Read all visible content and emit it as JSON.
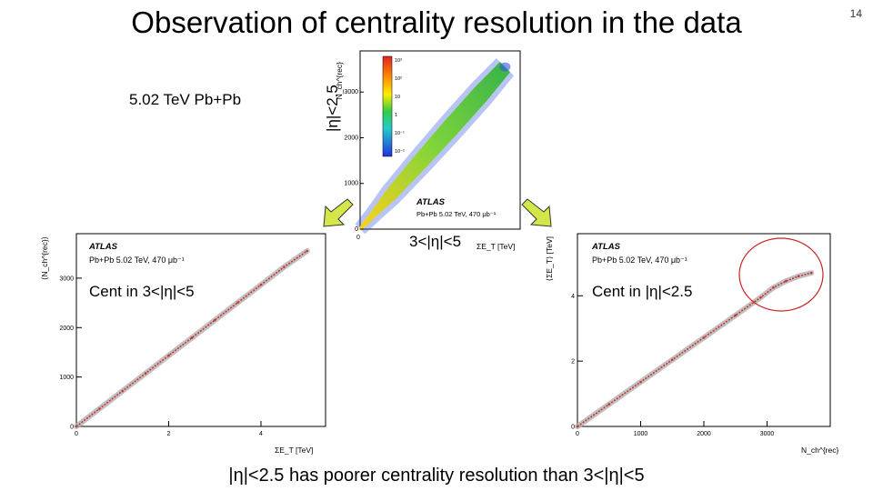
{
  "slide": {
    "title": "Observation of centrality resolution in the data",
    "number": "14",
    "energy_label": "5.02 TeV Pb+Pb",
    "eta_central_label": "|η|<2.5",
    "eta_forward_label": "3<|η|<5",
    "cent_left_label": "Cent in 3<|η|<5",
    "cent_right_label": "Cent in |η|<2.5",
    "conclusion": "|η|<2.5 has poorer centrality resolution than 3<|η|<5"
  },
  "arrow_color": "#d4e64a",
  "circle_color": "#cc2222",
  "chart_data": [
    {
      "id": "top-2d",
      "type": "heatmap",
      "atlas": "ATLAS",
      "info": "Pb+Pb 5.02 TeV, 470 μb⁻¹",
      "ylabel": "N_ch^{rec}",
      "xlabel": "ΣE_T [TeV]",
      "y_ticks": [
        "0",
        "1000",
        "2000",
        "3000"
      ],
      "x_ticks": [
        "0"
      ],
      "ylim": [
        0,
        3900
      ],
      "colorbar_labels": [
        "10³",
        "10²",
        "10",
        "1",
        "10⁻¹",
        "10⁻²"
      ],
      "ridge": [
        [
          0.0,
          0
        ],
        [
          0.5,
          370
        ],
        [
          1.0,
          740
        ],
        [
          2.0,
          1480
        ],
        [
          3.0,
          2220
        ],
        [
          4.0,
          2960
        ],
        [
          4.8,
          3550
        ]
      ],
      "colors": [
        "#ffffff",
        "#3355dd",
        "#22aa44",
        "#ffcc00",
        "#dd2222"
      ]
    },
    {
      "id": "bottom-left",
      "type": "line",
      "atlas": "ATLAS",
      "info": "Pb+Pb 5.02 TeV, 470 μb⁻¹",
      "xlabel": "ΣE_T [TeV]",
      "ylabel": "⟨N_ch^{rec}⟩",
      "xlim": [
        0,
        5.4
      ],
      "ylim": [
        0,
        3900
      ],
      "x_ticks": [
        0,
        2,
        4
      ],
      "y_ticks": [
        0,
        1000,
        2000,
        3000
      ],
      "x": [
        0,
        0.5,
        1,
        1.5,
        2,
        2.5,
        3,
        3.5,
        4,
        4.5,
        5.0
      ],
      "values": [
        0,
        358,
        717,
        1075,
        1434,
        1792,
        2150,
        2509,
        2867,
        3225,
        3550
      ],
      "fit_color": "#cc3333",
      "band_color": "#b0b0b0"
    },
    {
      "id": "bottom-right",
      "type": "line",
      "atlas": "ATLAS",
      "info": "Pb+Pb 5.02 TeV, 470 μb⁻¹",
      "xlabel": "N_ch^{rec}",
      "ylabel": "⟨ΣE_T⟩ [TeV]",
      "xlim": [
        0,
        4000
      ],
      "ylim": [
        0,
        5.9
      ],
      "x_ticks": [
        0,
        1000,
        2000,
        3000
      ],
      "y_ticks": [
        0,
        2,
        4
      ],
      "x": [
        0,
        500,
        1000,
        1500,
        2000,
        2500,
        2900,
        3100,
        3300,
        3500,
        3700
      ],
      "values": [
        0,
        0.68,
        1.36,
        2.04,
        2.72,
        3.4,
        3.95,
        4.25,
        4.45,
        4.6,
        4.7
      ],
      "fit_color": "#cc3333",
      "band_color": "#b0b0b0"
    }
  ]
}
